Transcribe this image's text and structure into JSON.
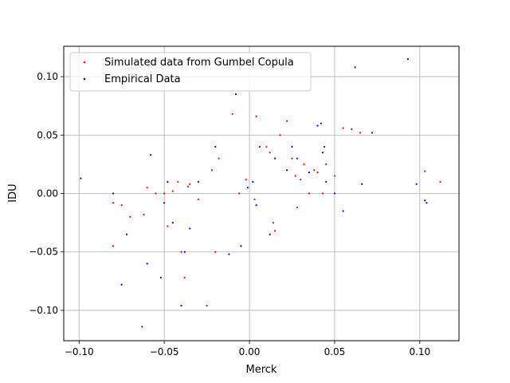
{
  "chart_data": {
    "type": "scatter",
    "title": "",
    "xlabel": "Merck",
    "ylabel": "IDU",
    "xlim": [
      -0.109,
      0.123
    ],
    "ylim": [
      -0.126,
      0.126
    ],
    "xticks": [
      -0.1,
      -0.05,
      0.0,
      0.05,
      0.1
    ],
    "yticks": [
      -0.1,
      -0.05,
      0.0,
      0.05,
      0.1
    ],
    "xtick_labels": [
      "−0.10",
      "−0.05",
      "0.00",
      "0.05",
      "0.10"
    ],
    "ytick_labels": [
      "−0.10",
      "−0.05",
      "0.00",
      "0.05",
      "0.10"
    ],
    "grid": true,
    "legend": "top-left",
    "series": [
      {
        "name": "Simulated data from Gumbel Copula",
        "color": "#ff0000",
        "x": [
          -0.08,
          -0.075,
          -0.07,
          -0.062,
          -0.06,
          -0.055,
          -0.05,
          -0.048,
          -0.042,
          -0.04,
          -0.038,
          -0.035,
          -0.03,
          -0.025,
          -0.022,
          -0.02,
          -0.018,
          -0.01,
          -0.006,
          -0.002,
          0.003,
          0.004,
          0.01,
          0.012,
          0.014,
          0.018,
          0.022,
          0.025,
          0.027,
          0.03,
          0.032,
          0.035,
          0.038,
          0.04,
          0.043,
          0.045,
          0.05,
          0.055,
          0.06,
          0.065,
          0.103,
          0.112,
          -0.08,
          -0.036,
          -0.045,
          0.028,
          0.015
        ],
        "y": [
          -0.008,
          -0.01,
          -0.02,
          -0.018,
          0.005,
          0.0,
          0.0,
          -0.028,
          0.01,
          -0.05,
          -0.072,
          0.008,
          -0.005,
          -0.096,
          0.02,
          -0.05,
          0.03,
          0.068,
          0.0,
          0.012,
          -0.005,
          0.066,
          0.04,
          0.035,
          -0.025,
          0.05,
          0.062,
          0.03,
          0.015,
          0.012,
          0.025,
          0.0,
          0.02,
          0.018,
          0.0,
          0.025,
          0.015,
          0.056,
          0.055,
          0.052,
          0.019,
          0.01,
          -0.045,
          0.006,
          0.002,
          -0.012,
          -0.032
        ]
      },
      {
        "name": "Empirical Data",
        "color": "#0000ff",
        "x": [
          -0.099,
          -0.08,
          -0.075,
          -0.072,
          -0.063,
          -0.06,
          -0.058,
          -0.052,
          -0.05,
          -0.048,
          -0.045,
          -0.04,
          -0.038,
          -0.035,
          -0.03,
          -0.02,
          -0.008,
          -0.005,
          -0.001,
          0.002,
          0.004,
          0.006,
          0.012,
          0.015,
          0.022,
          0.025,
          0.028,
          0.035,
          0.04,
          0.042,
          0.043,
          0.045,
          0.05,
          0.055,
          0.062,
          0.066,
          0.072,
          0.093,
          0.098,
          0.103,
          0.104,
          0.044,
          -0.012
        ],
        "y": [
          0.013,
          0.0,
          -0.078,
          -0.035,
          -0.114,
          -0.06,
          0.033,
          -0.072,
          -0.008,
          0.01,
          -0.025,
          -0.096,
          -0.05,
          -0.03,
          0.01,
          0.04,
          0.085,
          -0.045,
          0.005,
          0.01,
          -0.01,
          0.04,
          -0.035,
          0.03,
          0.02,
          0.04,
          0.03,
          0.018,
          0.058,
          0.06,
          0.035,
          0.01,
          0.0,
          -0.015,
          0.108,
          0.008,
          0.052,
          0.115,
          0.008,
          -0.006,
          -0.008,
          0.04,
          -0.052
        ]
      }
    ]
  }
}
